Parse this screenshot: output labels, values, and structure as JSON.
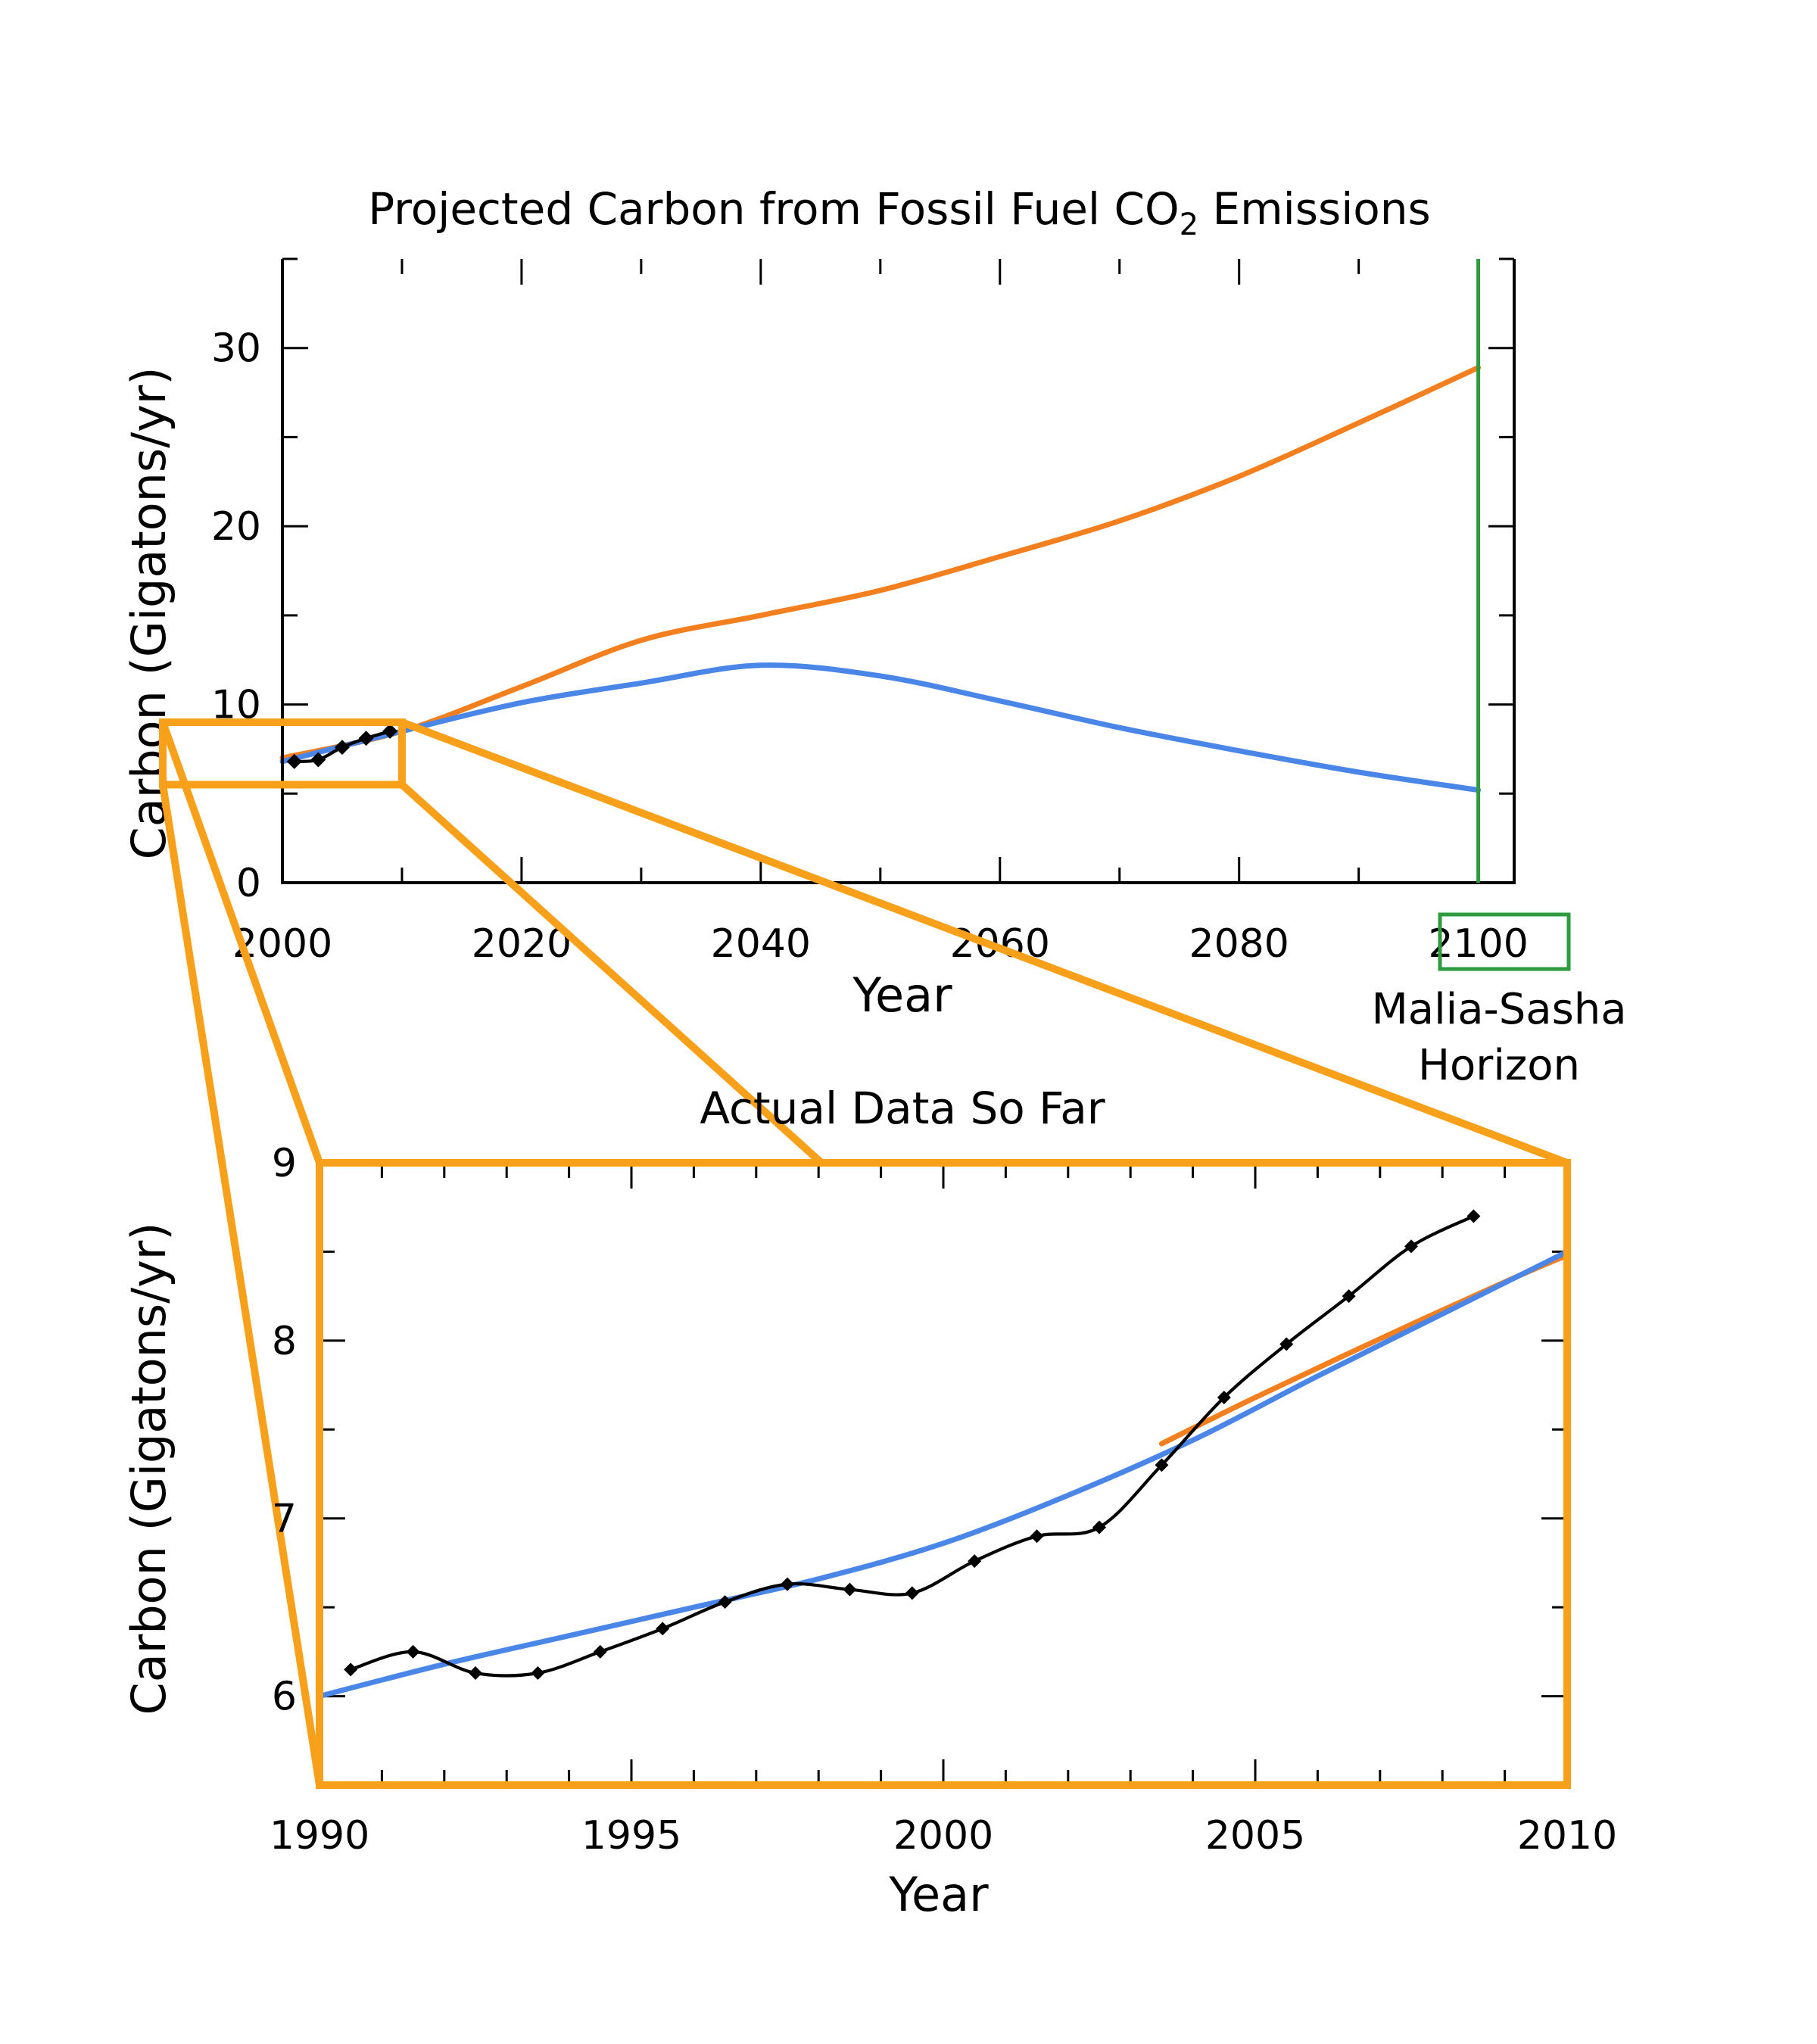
{
  "colors": {
    "background": "#ffffff",
    "axis": "#000000",
    "orange_series": "#f47f1e",
    "blue_series": "#4a86e8",
    "observed": "#000000",
    "zoom_outline": "#f9a01b",
    "horizon": "#2e9b3e",
    "horizon_text": "#1f7f2f"
  },
  "chart_data": [
    {
      "type": "line",
      "title": "Projected Carbon from Fossil Fuel CO",
      "title_subscript": "2",
      "title_suffix": " Emissions",
      "xlabel": "Year",
      "ylabel": "Carbon (Gigatons/yr)",
      "xlim": [
        2000,
        2103
      ],
      "ylim": [
        0,
        35
      ],
      "xticks": [
        2000,
        2020,
        2040,
        2060,
        2080,
        2100
      ],
      "yticks": [
        0,
        10,
        20,
        30
      ],
      "grid": false,
      "series": [
        {
          "color": "#f47f1e",
          "x": [
            2000,
            2010,
            2020,
            2030,
            2040,
            2050,
            2060,
            2070,
            2080,
            2090,
            2100
          ],
          "y": [
            7.0,
            8.5,
            11.0,
            13.6,
            15.0,
            16.4,
            18.3,
            20.3,
            22.8,
            25.8,
            28.9
          ]
        },
        {
          "color": "#4a86e8",
          "x": [
            2000,
            2010,
            2020,
            2030,
            2040,
            2050,
            2060,
            2070,
            2080,
            2090,
            2100
          ],
          "y": [
            6.8,
            8.5,
            10.1,
            11.2,
            12.2,
            11.6,
            10.2,
            8.7,
            7.4,
            6.2,
            5.2
          ]
        },
        {
          "color": "#000000",
          "markers": "diamond",
          "x": [
            2001,
            2003,
            2005,
            2007,
            2009
          ],
          "y": [
            6.8,
            6.9,
            7.6,
            8.1,
            8.5
          ]
        }
      ],
      "annotations": {
        "horizon_year": 2100,
        "horizon_label_lines": [
          "Malia-Sasha",
          "Horizon"
        ],
        "zoom_box": {
          "x": [
            1990,
            2010
          ],
          "y": [
            5.5,
            9.0
          ]
        }
      }
    },
    {
      "type": "line",
      "title": "Actual Data So Far",
      "xlabel": "Year",
      "ylabel": "Carbon (Gigatons/yr)",
      "xlim": [
        1990,
        2010
      ],
      "ylim": [
        5.5,
        9.0
      ],
      "xticks": [
        1990,
        1995,
        2000,
        2005,
        2010
      ],
      "yticks": [
        6,
        7,
        8,
        9
      ],
      "grid": false,
      "series": [
        {
          "color": "#f47f1e",
          "x": [
            2003.5,
            2005,
            2007,
            2009,
            2010
          ],
          "y": [
            7.42,
            7.68,
            8.01,
            8.33,
            8.48
          ]
        },
        {
          "color": "#4a86e8",
          "x": [
            1990,
            1992,
            1994,
            1996,
            1998,
            2000,
            2002,
            2004,
            2006,
            2008,
            2010
          ],
          "y": [
            6.0,
            6.18,
            6.34,
            6.5,
            6.66,
            6.86,
            7.13,
            7.44,
            7.8,
            8.15,
            8.5
          ]
        },
        {
          "color": "#000000",
          "markers": "diamond",
          "x": [
            1990.5,
            1991.5,
            1992.5,
            1993.5,
            1994.5,
            1995.5,
            1996.5,
            1997.5,
            1998.5,
            1999.5,
            2000.5,
            2001.5,
            2002.5,
            2003.5,
            2004.5,
            2005.5,
            2006.5,
            2007.5,
            2008.5
          ],
          "y": [
            6.15,
            6.25,
            6.13,
            6.13,
            6.25,
            6.38,
            6.53,
            6.63,
            6.6,
            6.58,
            6.76,
            6.9,
            6.95,
            7.3,
            7.68,
            7.98,
            8.25,
            8.53,
            8.7
          ]
        }
      ]
    }
  ]
}
